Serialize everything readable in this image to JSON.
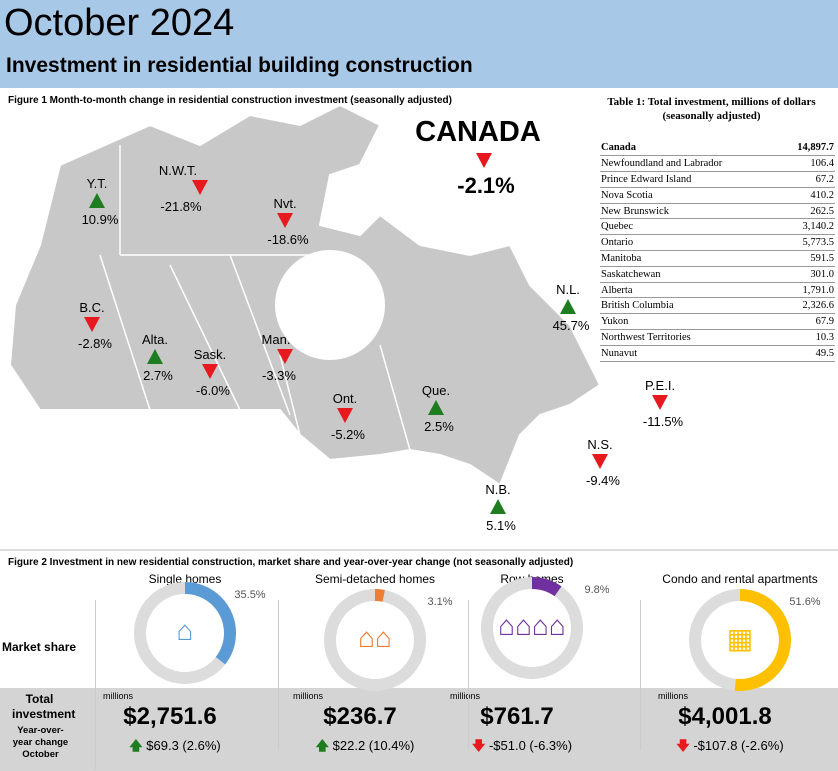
{
  "header": {
    "title": "October 2024",
    "subtitle": "Investment in residential building construction"
  },
  "figure1": {
    "caption": "Figure 1  Month-to-month change in residential construction investment (seasonally adjusted)",
    "canada": {
      "label": "CANADA",
      "value": "-2.1%",
      "direction": "down"
    },
    "regions": [
      {
        "label": "Y.T.",
        "value": "10.9%",
        "direction": "up"
      },
      {
        "label": "N.W.T.",
        "value": "-21.8%",
        "direction": "down"
      },
      {
        "label": "Nvt.",
        "value": "-18.6%",
        "direction": "down"
      },
      {
        "label": "N.L.",
        "value": "45.7%",
        "direction": "up"
      },
      {
        "label": "B.C.",
        "value": "-2.8%",
        "direction": "down"
      },
      {
        "label": "Alta.",
        "value": "2.7%",
        "direction": "up"
      },
      {
        "label": "Sask.",
        "value": "-6.0%",
        "direction": "down"
      },
      {
        "label": "Man.",
        "value": "-3.3%",
        "direction": "down"
      },
      {
        "label": "Ont.",
        "value": "-5.2%",
        "direction": "down"
      },
      {
        "label": "Que.",
        "value": "2.5%",
        "direction": "up"
      },
      {
        "label": "P.E.I.",
        "value": "-11.5%",
        "direction": "down"
      },
      {
        "label": "N.S.",
        "value": "-9.4%",
        "direction": "down"
      },
      {
        "label": "N.B.",
        "value": "5.1%",
        "direction": "up"
      }
    ],
    "colors": {
      "up": "#1e7d1e",
      "down": "#e8191e",
      "map": "#c8c8c8"
    }
  },
  "table1": {
    "title": "Table 1: Total investment, millions of dollars",
    "subtitle": "(seasonally adjusted)",
    "rows": [
      [
        "Canada",
        "14,897.7"
      ],
      [
        "Newfoundland and Labrador",
        "106.4"
      ],
      [
        "Prince Edward Island",
        "67.2"
      ],
      [
        "Nova Scotia",
        "410.2"
      ],
      [
        "New Brunswick",
        "262.5"
      ],
      [
        "Quebec",
        "3,140.2"
      ],
      [
        "Ontario",
        "5,773.5"
      ],
      [
        "Manitoba",
        "591.5"
      ],
      [
        "Saskatchewan",
        "301.0"
      ],
      [
        "Alberta",
        "1,791.0"
      ],
      [
        "British Columbia",
        "2,326.6"
      ],
      [
        "Yukon",
        "67.9"
      ],
      [
        "Northwest Territories",
        "10.3"
      ],
      [
        "Nunavut",
        "49.5"
      ]
    ]
  },
  "figure2": {
    "caption": "Figure 2 Investment in new residential construction, market share and year-over-year change (not seasonally adjusted)",
    "row_labels": {
      "market_share": "Market share",
      "total": "Total investment",
      "yoy": "Year-over-year change October"
    },
    "units": "millions",
    "chart_data": {
      "type": "pie",
      "variant": "donut",
      "categories": [
        "Single homes",
        "Semi-detached homes",
        "Row homes",
        "Condo and rental apartments"
      ],
      "values": [
        35.5,
        3.1,
        9.8,
        51.6
      ],
      "labels": [
        "35.5%",
        "3.1%",
        "9.8%",
        "51.6%"
      ],
      "colors": [
        "#5b9bd5",
        "#ed7d31",
        "#7030a0",
        "#ffc000"
      ]
    },
    "segments": [
      {
        "name": "Single homes",
        "share": "35.5%",
        "total": "$2,751.6",
        "change": "$69.3 (2.6%)",
        "direction": "up",
        "icon": "house-icon"
      },
      {
        "name": "Semi-detached homes",
        "share": "3.1%",
        "total": "$236.7",
        "change": "$22.2 (10.4%)",
        "direction": "up",
        "icon": "semi-detached-icon"
      },
      {
        "name": "Row homes",
        "share": "9.8%",
        "total": "$761.7",
        "change": "-$51.0 (-6.3%)",
        "direction": "down",
        "icon": "row-homes-icon"
      },
      {
        "name": "Condo and rental apartments",
        "share": "51.6%",
        "total": "$4,001.8",
        "change": "-$107.8 (-2.6%)",
        "direction": "down",
        "icon": "apartment-icon"
      }
    ]
  }
}
